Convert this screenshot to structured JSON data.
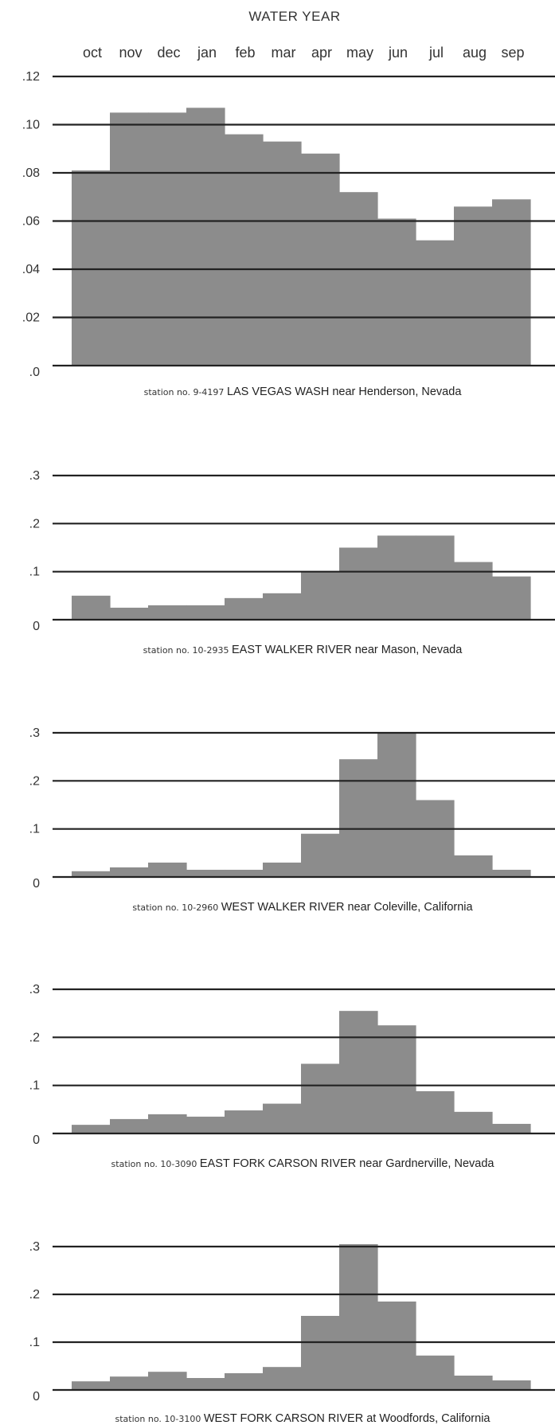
{
  "title": "WATER YEAR",
  "months": [
    "oct",
    "nov",
    "dec",
    "jan",
    "feb",
    "mar",
    "apr",
    "may",
    "jun",
    "jul",
    "aug",
    "sep"
  ],
  "colors": {
    "bar": "#8c8c8c",
    "grid": "#222222",
    "text": "#333333"
  },
  "chart_data": [
    {
      "type": "bar",
      "categories": [
        "oct",
        "nov",
        "dec",
        "jan",
        "feb",
        "mar",
        "apr",
        "may",
        "jun",
        "jul",
        "aug",
        "sep"
      ],
      "values": [
        0.081,
        0.105,
        0.105,
        0.107,
        0.096,
        0.093,
        0.088,
        0.072,
        0.061,
        0.052,
        0.066,
        0.069
      ],
      "ylim": [
        0,
        0.12
      ],
      "yticks": [
        0,
        0.02,
        0.04,
        0.06,
        0.08,
        0.1,
        0.12
      ],
      "ytick_labels": [
        ".0",
        ".02",
        ".04",
        ".06",
        ".08",
        ".10",
        ".12"
      ],
      "grid": true,
      "caption_prefix": "station no.",
      "station_no": "9-4197",
      "station_name": "LAS VEGAS WASH near Henderson, Nevada"
    },
    {
      "type": "bar",
      "categories": [
        "oct",
        "nov",
        "dec",
        "jan",
        "feb",
        "mar",
        "apr",
        "may",
        "jun",
        "jul",
        "aug",
        "sep"
      ],
      "values": [
        0.05,
        0.025,
        0.03,
        0.03,
        0.045,
        0.055,
        0.1,
        0.15,
        0.175,
        0.175,
        0.12,
        0.09
      ],
      "ylim": [
        0,
        0.3
      ],
      "yticks": [
        0,
        0.1,
        0.2,
        0.3
      ],
      "ytick_labels": [
        "0",
        ".1",
        ".2",
        ".3"
      ],
      "grid": true,
      "caption_prefix": "station no.",
      "station_no": "10-2935",
      "station_name": "EAST WALKER RIVER near Mason, Nevada"
    },
    {
      "type": "bar",
      "categories": [
        "oct",
        "nov",
        "dec",
        "jan",
        "feb",
        "mar",
        "apr",
        "may",
        "jun",
        "jul",
        "aug",
        "sep"
      ],
      "values": [
        0.012,
        0.02,
        0.03,
        0.015,
        0.015,
        0.03,
        0.09,
        0.245,
        0.3,
        0.16,
        0.045,
        0.015
      ],
      "ylim": [
        0,
        0.3
      ],
      "yticks": [
        0,
        0.1,
        0.2,
        0.3
      ],
      "ytick_labels": [
        "0",
        ".1",
        ".2",
        ".3"
      ],
      "grid": true,
      "caption_prefix": "station no.",
      "station_no": "10-2960",
      "station_name": "WEST WALKER RIVER near Coleville, California"
    },
    {
      "type": "bar",
      "categories": [
        "oct",
        "nov",
        "dec",
        "jan",
        "feb",
        "mar",
        "apr",
        "may",
        "jun",
        "jul",
        "aug",
        "sep"
      ],
      "values": [
        0.018,
        0.03,
        0.04,
        0.035,
        0.048,
        0.062,
        0.145,
        0.255,
        0.225,
        0.088,
        0.045,
        0.02
      ],
      "ylim": [
        0,
        0.3
      ],
      "yticks": [
        0,
        0.1,
        0.2,
        0.3
      ],
      "ytick_labels": [
        "0",
        ".1",
        ".2",
        ".3"
      ],
      "grid": true,
      "caption_prefix": "station no.",
      "station_no": "10-3090",
      "station_name": "EAST FORK CARSON RIVER near Gardnerville, Nevada"
    },
    {
      "type": "bar",
      "categories": [
        "oct",
        "nov",
        "dec",
        "jan",
        "feb",
        "mar",
        "apr",
        "may",
        "jun",
        "jul",
        "aug",
        "sep"
      ],
      "values": [
        0.018,
        0.028,
        0.038,
        0.025,
        0.035,
        0.048,
        0.155,
        0.305,
        0.185,
        0.072,
        0.03,
        0.02
      ],
      "ylim": [
        0,
        0.3
      ],
      "yticks": [
        0,
        0.1,
        0.2,
        0.3
      ],
      "ytick_labels": [
        "0",
        ".1",
        ".2",
        ".3"
      ],
      "grid": true,
      "caption_prefix": "station no.",
      "station_no": "10-3100",
      "station_name": "WEST FORK CARSON RIVER at Woodfords, California"
    }
  ]
}
